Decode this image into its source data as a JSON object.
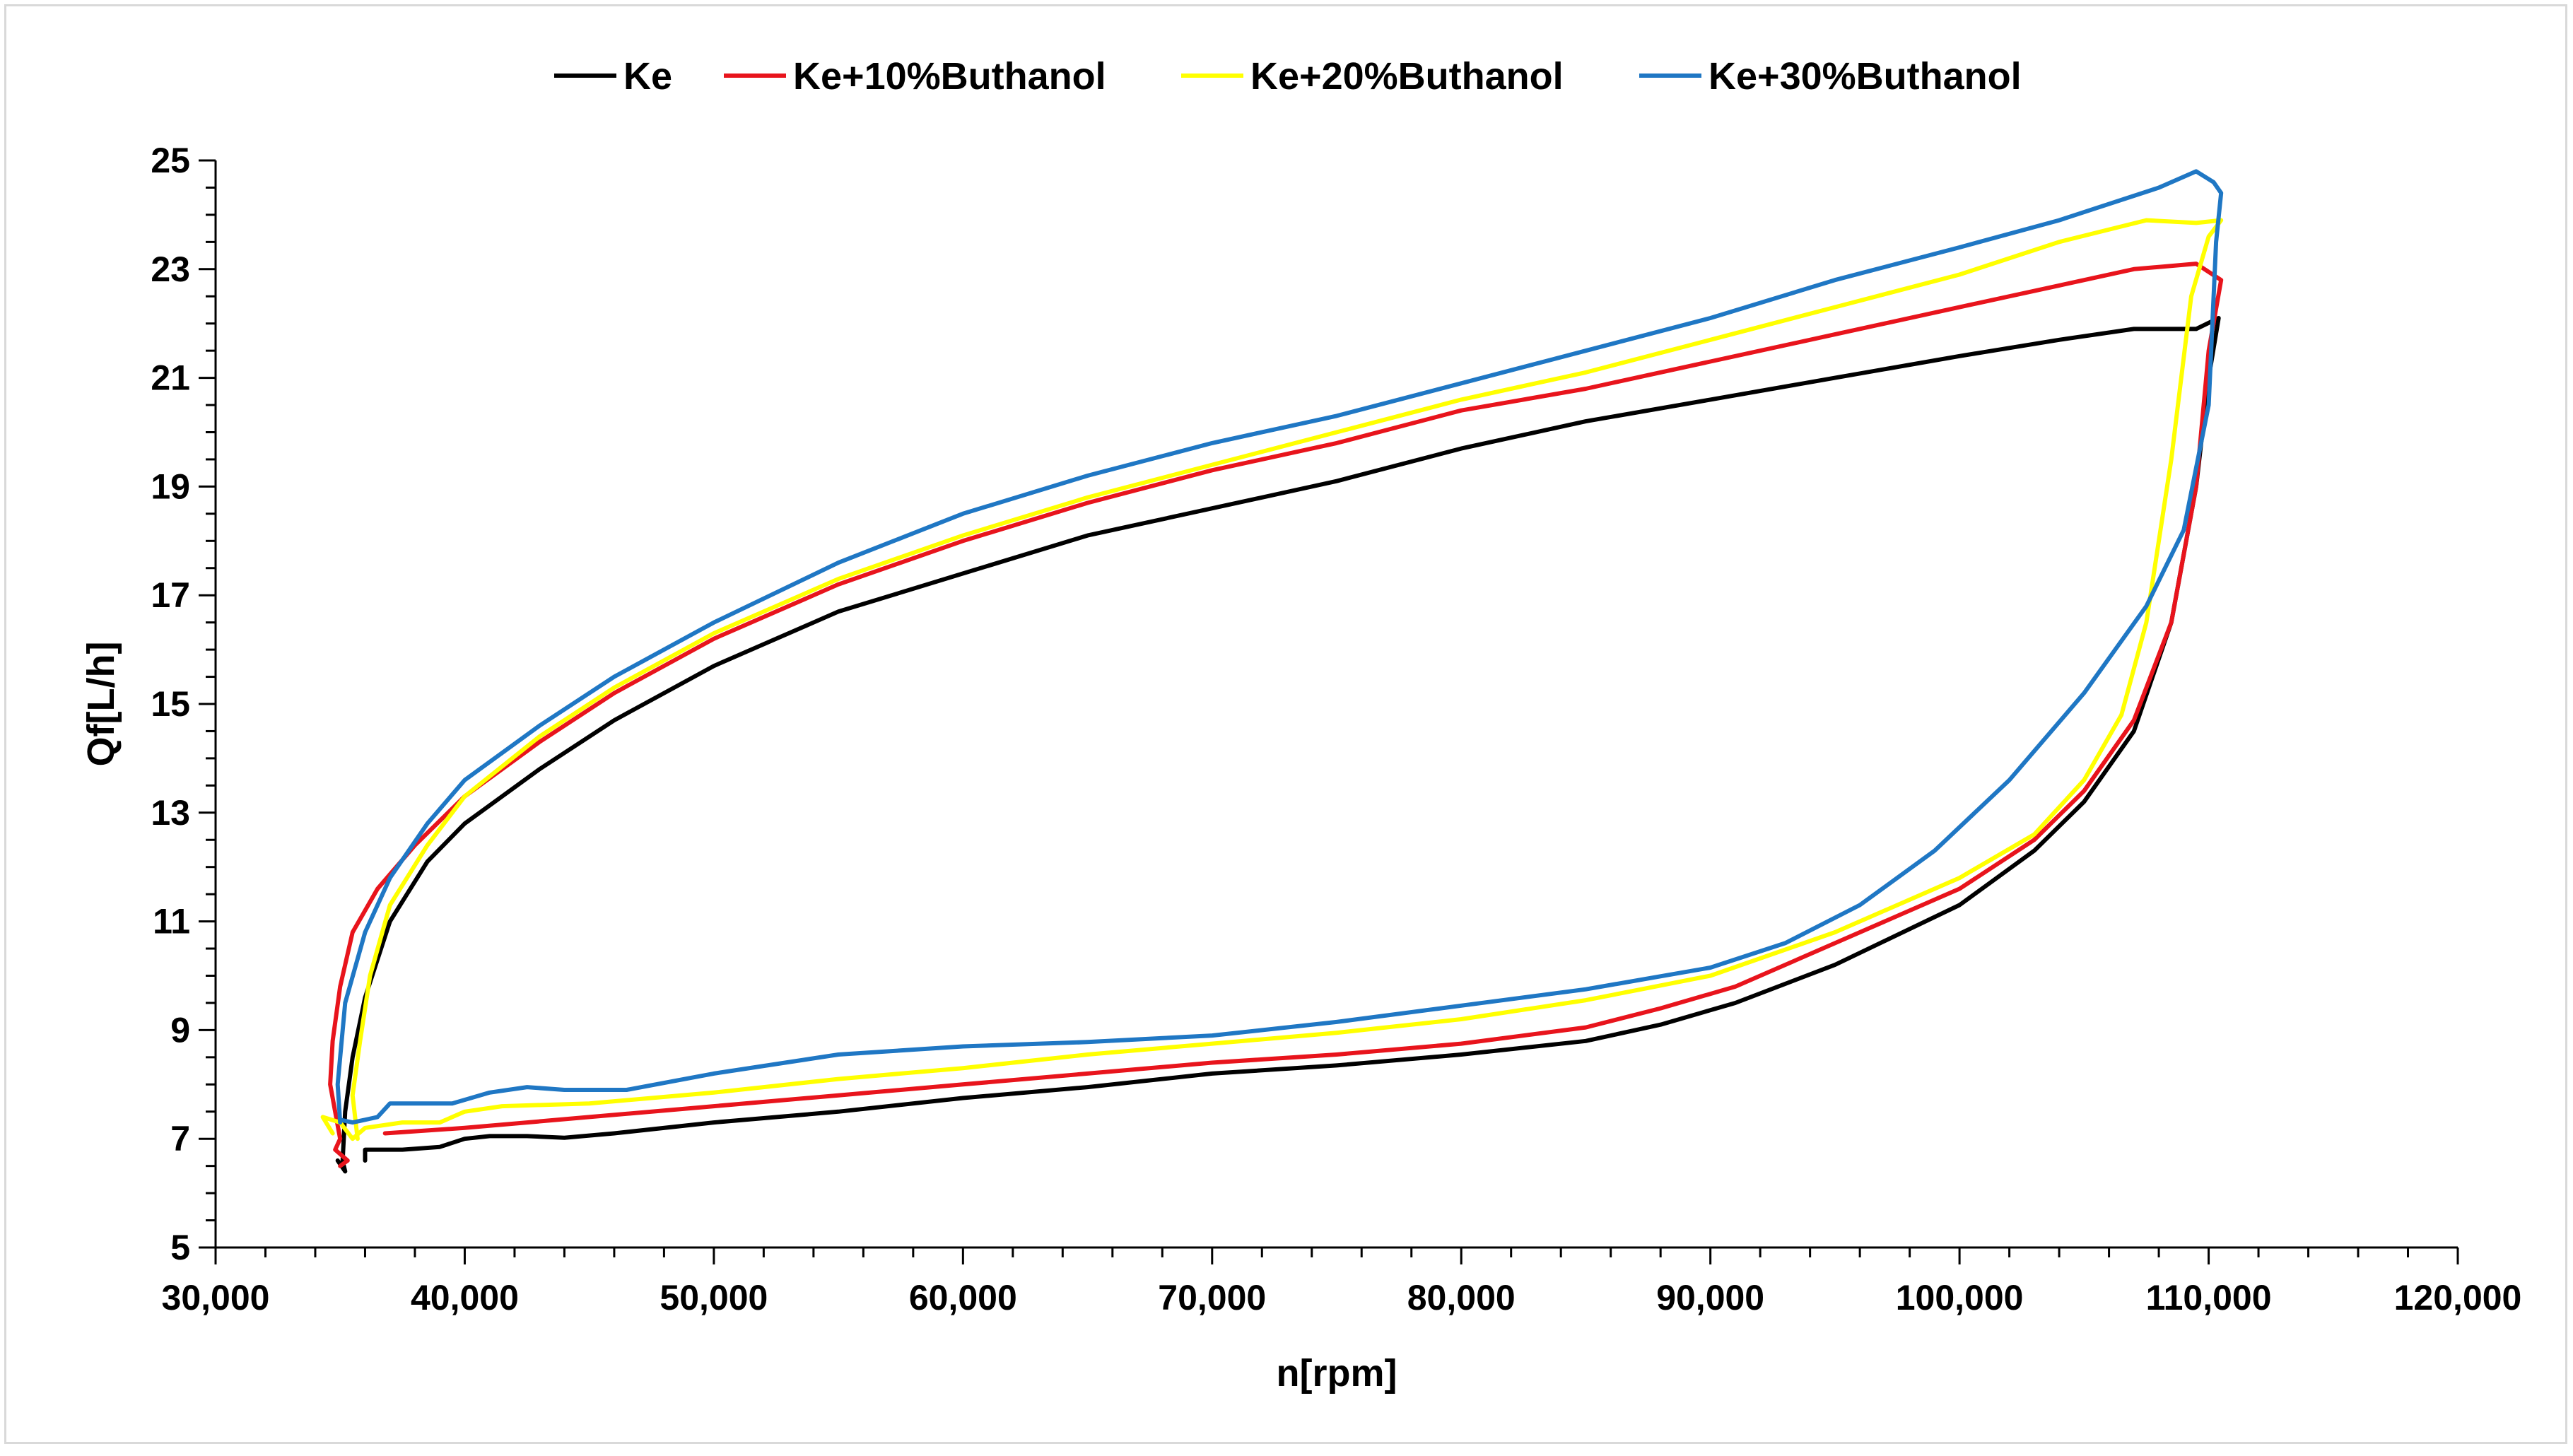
{
  "chart_data": {
    "type": "line",
    "title": "",
    "xlabel": "n[rpm]",
    "ylabel": "Qf[L/h]",
    "xlim": [
      30000,
      120000
    ],
    "ylim": [
      5,
      25
    ],
    "x_ticks": [
      30000,
      40000,
      50000,
      60000,
      70000,
      80000,
      90000,
      100000,
      110000,
      120000
    ],
    "x_tick_labels": [
      "30,000",
      "40,000",
      "50,000",
      "60,000",
      "70,000",
      "80,000",
      "90,000",
      "100,000",
      "110,000",
      "120,000"
    ],
    "y_ticks": [
      5,
      7,
      9,
      11,
      13,
      15,
      17,
      19,
      21,
      23,
      25
    ],
    "y_tick_labels": [
      "5",
      "7",
      "9",
      "11",
      "13",
      "15",
      "17",
      "19",
      "21",
      "23",
      "25"
    ],
    "grid": false,
    "legend_position": "top-center",
    "series": [
      {
        "name": "Ke",
        "color": "#000000",
        "points": [
          [
            36000,
            6.6
          ],
          [
            36000,
            6.8
          ],
          [
            37500,
            6.8
          ],
          [
            39000,
            6.85
          ],
          [
            40000,
            7.0
          ],
          [
            41000,
            7.05
          ],
          [
            42500,
            7.05
          ],
          [
            44000,
            7.02
          ],
          [
            46000,
            7.1
          ],
          [
            50000,
            7.3
          ],
          [
            55000,
            7.5
          ],
          [
            60000,
            7.75
          ],
          [
            65000,
            7.95
          ],
          [
            70000,
            8.2
          ],
          [
            75000,
            8.35
          ],
          [
            80000,
            8.55
          ],
          [
            85000,
            8.8
          ],
          [
            88000,
            9.1
          ],
          [
            91000,
            9.5
          ],
          [
            95000,
            10.2
          ],
          [
            100000,
            11.3
          ],
          [
            103000,
            12.3
          ],
          [
            105000,
            13.2
          ],
          [
            107000,
            14.5
          ],
          [
            108500,
            16.5
          ],
          [
            109500,
            19.0
          ],
          [
            110000,
            21.0
          ],
          [
            110400,
            22.1
          ],
          [
            109500,
            21.9
          ],
          [
            107000,
            21.9
          ],
          [
            104000,
            21.7
          ],
          [
            100000,
            21.4
          ],
          [
            95000,
            21.0
          ],
          [
            90000,
            20.6
          ],
          [
            85000,
            20.2
          ],
          [
            80000,
            19.7
          ],
          [
            75000,
            19.1
          ],
          [
            70000,
            18.6
          ],
          [
            65000,
            18.1
          ],
          [
            60000,
            17.4
          ],
          [
            55000,
            16.7
          ],
          [
            50000,
            15.7
          ],
          [
            46000,
            14.7
          ],
          [
            43000,
            13.8
          ],
          [
            40000,
            12.8
          ],
          [
            38500,
            12.1
          ],
          [
            37000,
            11.0
          ],
          [
            36000,
            9.6
          ],
          [
            35500,
            8.5
          ],
          [
            35200,
            7.5
          ],
          [
            35100,
            6.6
          ],
          [
            35200,
            6.4
          ],
          [
            34900,
            6.6
          ]
        ]
      },
      {
        "name": "Ke+10%Buthanol",
        "color": "#e8141c",
        "points": [
          [
            36800,
            7.1
          ],
          [
            40000,
            7.2
          ],
          [
            45000,
            7.4
          ],
          [
            50000,
            7.6
          ],
          [
            55000,
            7.8
          ],
          [
            60000,
            8.0
          ],
          [
            65000,
            8.2
          ],
          [
            70000,
            8.4
          ],
          [
            75000,
            8.55
          ],
          [
            80000,
            8.75
          ],
          [
            85000,
            9.05
          ],
          [
            88000,
            9.4
          ],
          [
            91000,
            9.8
          ],
          [
            95000,
            10.6
          ],
          [
            100000,
            11.6
          ],
          [
            103000,
            12.5
          ],
          [
            105000,
            13.4
          ],
          [
            107000,
            14.7
          ],
          [
            108500,
            16.5
          ],
          [
            109500,
            19.0
          ],
          [
            110000,
            21.5
          ],
          [
            110500,
            22.8
          ],
          [
            109500,
            23.1
          ],
          [
            107000,
            23.0
          ],
          [
            104000,
            22.7
          ],
          [
            100000,
            22.3
          ],
          [
            95000,
            21.8
          ],
          [
            90000,
            21.3
          ],
          [
            85000,
            20.8
          ],
          [
            80000,
            20.4
          ],
          [
            75000,
            19.8
          ],
          [
            70000,
            19.3
          ],
          [
            65000,
            18.7
          ],
          [
            60000,
            18.0
          ],
          [
            55000,
            17.2
          ],
          [
            50000,
            16.2
          ],
          [
            46000,
            15.2
          ],
          [
            43000,
            14.3
          ],
          [
            40000,
            13.3
          ],
          [
            38000,
            12.4
          ],
          [
            36500,
            11.6
          ],
          [
            35500,
            10.8
          ],
          [
            35000,
            9.8
          ],
          [
            34700,
            8.8
          ],
          [
            34600,
            8.0
          ],
          [
            35000,
            7.0
          ],
          [
            34800,
            6.8
          ],
          [
            35300,
            6.6
          ],
          [
            35000,
            6.5
          ]
        ]
      },
      {
        "name": "Ke+20%Buthanol",
        "color": "#ffff00",
        "points": [
          [
            34700,
            7.1
          ],
          [
            34300,
            7.4
          ],
          [
            35000,
            7.3
          ],
          [
            35500,
            7.0
          ],
          [
            36000,
            7.2
          ],
          [
            37500,
            7.3
          ],
          [
            39000,
            7.3
          ],
          [
            40000,
            7.5
          ],
          [
            41500,
            7.6
          ],
          [
            45000,
            7.65
          ],
          [
            50000,
            7.85
          ],
          [
            55000,
            8.1
          ],
          [
            60000,
            8.3
          ],
          [
            65000,
            8.55
          ],
          [
            70000,
            8.75
          ],
          [
            75000,
            8.95
          ],
          [
            80000,
            9.2
          ],
          [
            85000,
            9.55
          ],
          [
            90000,
            10.0
          ],
          [
            95000,
            10.8
          ],
          [
            100000,
            11.8
          ],
          [
            103000,
            12.6
          ],
          [
            105000,
            13.6
          ],
          [
            106500,
            14.8
          ],
          [
            107500,
            16.5
          ],
          [
            108500,
            19.5
          ],
          [
            109300,
            22.5
          ],
          [
            110000,
            23.6
          ],
          [
            110500,
            23.9
          ],
          [
            109500,
            23.85
          ],
          [
            107500,
            23.9
          ],
          [
            104000,
            23.5
          ],
          [
            100000,
            22.9
          ],
          [
            95000,
            22.3
          ],
          [
            90000,
            21.7
          ],
          [
            85000,
            21.1
          ],
          [
            80000,
            20.6
          ],
          [
            75000,
            20.0
          ],
          [
            70000,
            19.4
          ],
          [
            65000,
            18.8
          ],
          [
            60000,
            18.1
          ],
          [
            55000,
            17.3
          ],
          [
            50000,
            16.3
          ],
          [
            46000,
            15.3
          ],
          [
            43000,
            14.4
          ],
          [
            40000,
            13.3
          ],
          [
            38500,
            12.4
          ],
          [
            37000,
            11.3
          ],
          [
            36200,
            10.0
          ],
          [
            35800,
            8.8
          ],
          [
            35500,
            7.8
          ],
          [
            35700,
            7.0
          ]
        ]
      },
      {
        "name": "Ke+30%Buthanol",
        "color": "#1f77c4",
        "points": [
          [
            35000,
            7.35
          ],
          [
            35500,
            7.3
          ],
          [
            36000,
            7.35
          ],
          [
            36500,
            7.4
          ],
          [
            37000,
            7.65
          ],
          [
            38000,
            7.65
          ],
          [
            39500,
            7.65
          ],
          [
            41000,
            7.85
          ],
          [
            42500,
            7.95
          ],
          [
            44000,
            7.9
          ],
          [
            46500,
            7.9
          ],
          [
            50000,
            8.2
          ],
          [
            55000,
            8.55
          ],
          [
            60000,
            8.7
          ],
          [
            65000,
            8.78
          ],
          [
            70000,
            8.9
          ],
          [
            75000,
            9.15
          ],
          [
            80000,
            9.45
          ],
          [
            85000,
            9.75
          ],
          [
            90000,
            10.15
          ],
          [
            93000,
            10.6
          ],
          [
            96000,
            11.3
          ],
          [
            99000,
            12.3
          ],
          [
            102000,
            13.6
          ],
          [
            105000,
            15.2
          ],
          [
            107500,
            16.8
          ],
          [
            109000,
            18.2
          ],
          [
            110000,
            20.5
          ],
          [
            110300,
            23.5
          ],
          [
            110500,
            24.4
          ],
          [
            110200,
            24.6
          ],
          [
            109500,
            24.8
          ],
          [
            108000,
            24.5
          ],
          [
            104000,
            23.9
          ],
          [
            100000,
            23.4
          ],
          [
            95000,
            22.8
          ],
          [
            90000,
            22.1
          ],
          [
            85000,
            21.5
          ],
          [
            80000,
            20.9
          ],
          [
            75000,
            20.3
          ],
          [
            70000,
            19.8
          ],
          [
            65000,
            19.2
          ],
          [
            60000,
            18.5
          ],
          [
            55000,
            17.6
          ],
          [
            50000,
            16.5
          ],
          [
            46000,
            15.5
          ],
          [
            43000,
            14.6
          ],
          [
            40000,
            13.6
          ],
          [
            38500,
            12.8
          ],
          [
            37000,
            11.8
          ],
          [
            36000,
            10.8
          ],
          [
            35200,
            9.5
          ],
          [
            34900,
            8.0
          ],
          [
            35000,
            7.3
          ]
        ]
      }
    ]
  }
}
